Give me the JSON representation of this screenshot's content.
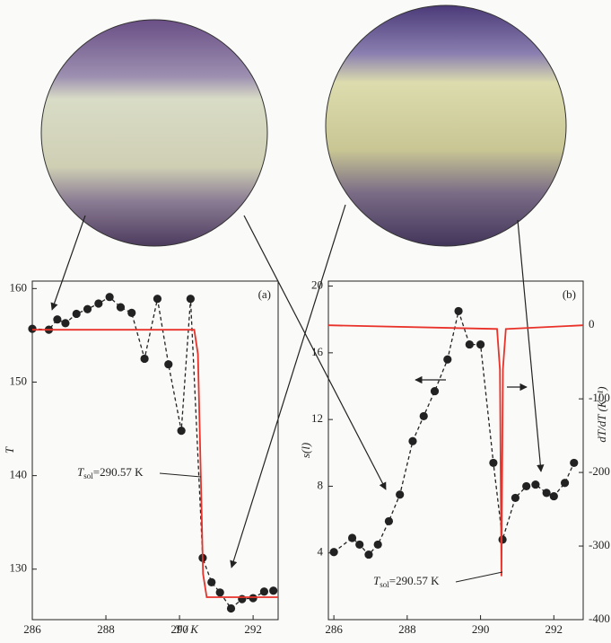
{
  "chart_data": [
    {
      "type": "line",
      "panel_label": "(a)",
      "x_label": "T / K",
      "y_label": "T",
      "annotation_symbol": "T",
      "annotation_subscript": "sol",
      "annotation_value": "=290.57 K",
      "xlim": [
        286,
        292.68
      ],
      "xticks": [
        286,
        288,
        290,
        292
      ],
      "ylim": [
        124.6,
        160.8
      ],
      "yticks": [
        130,
        140,
        150,
        160
      ],
      "series": [
        {
          "color": "#222222",
          "dashed": true,
          "markers": true,
          "x": [
            286.0,
            286.45,
            286.68,
            286.9,
            287.2,
            287.5,
            287.8,
            288.1,
            288.4,
            288.7,
            289.05,
            289.4,
            289.7,
            290.05,
            290.3,
            290.63,
            290.87,
            291.1,
            291.4,
            291.7,
            292.0,
            292.3,
            292.55
          ],
          "values": [
            155.7,
            155.6,
            156.7,
            156.3,
            157.3,
            157.8,
            158.4,
            159.1,
            158.0,
            157.4,
            152.5,
            158.9,
            151.9,
            144.8,
            158.9,
            131.2,
            128.6,
            127.5,
            125.8,
            126.8,
            126.9,
            127.6,
            127.7
          ]
        },
        {
          "color": "#e8322a",
          "dashed": false,
          "markers": false,
          "x": [
            286.0,
            290.4,
            290.5,
            290.57,
            290.64,
            290.74,
            292.68
          ],
          "values": [
            155.6,
            155.6,
            153.0,
            141.3,
            129.5,
            127.0,
            127.0
          ]
        }
      ]
    },
    {
      "type": "line",
      "panel_label": "(b)",
      "y_label": "s(l)",
      "y2_label": "dT/dT (K⁻¹)",
      "annotation_symbol": "T",
      "annotation_subscript": "sol",
      "annotation_value": "=290.57 K",
      "xlim": [
        285.85,
        292.8
      ],
      "xticks": [
        286,
        288,
        290,
        292
      ],
      "ylim": [
        0,
        20.3
      ],
      "yticks": [
        4,
        8,
        12,
        16,
        20
      ],
      "y2lim": [
        -400,
        60
      ],
      "y2ticks": [
        0,
        -100,
        -200,
        -300,
        -400
      ],
      "series": [
        {
          "color": "#222222",
          "dashed": true,
          "markers": true,
          "x": [
            286.0,
            286.5,
            286.7,
            286.95,
            287.2,
            287.5,
            287.8,
            288.15,
            288.45,
            288.75,
            289.1,
            289.4,
            289.7,
            290.0,
            290.35,
            290.6,
            290.95,
            291.25,
            291.5,
            291.8,
            292.0,
            292.3,
            292.55
          ],
          "values": [
            4.05,
            4.9,
            4.5,
            3.9,
            4.5,
            5.9,
            7.5,
            10.7,
            12.2,
            13.7,
            15.6,
            18.5,
            16.5,
            16.5,
            9.4,
            4.8,
            7.3,
            8.0,
            8.1,
            7.6,
            7.4,
            8.2,
            9.4
          ]
        },
        {
          "color": "#e8322a",
          "dashed": false,
          "markers": false,
          "axis": "y2",
          "x": [
            285.85,
            290.45,
            290.53,
            290.57,
            290.61,
            290.69,
            292.8
          ],
          "values": [
            0,
            -5,
            -60,
            -341,
            -60,
            -5,
            0
          ]
        }
      ]
    }
  ]
}
